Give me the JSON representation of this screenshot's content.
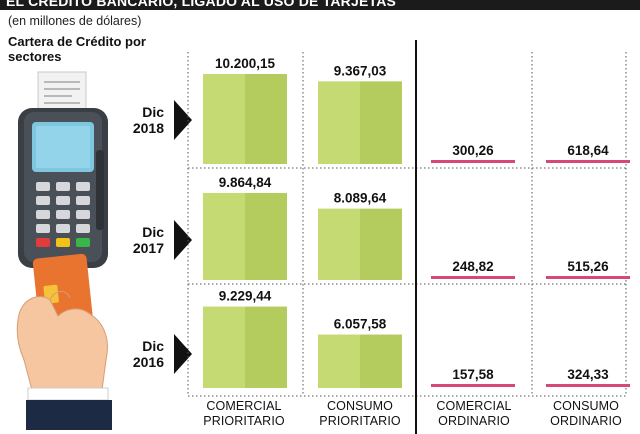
{
  "header": {
    "title": "EL CRÉDITO BANCARIO, LIGADO AL USO DE TARJETAS"
  },
  "subtitle": "(en millones de dólares)",
  "section_title": "Cartera de Crédito por sectores",
  "years": [
    {
      "line1": "Dic",
      "line2": "2018"
    },
    {
      "line1": "Dic",
      "line2": "2017"
    },
    {
      "line1": "Dic",
      "line2": "2016"
    }
  ],
  "categories": [
    {
      "line1": "COMERCIAL",
      "line2": "PRIORITARIO"
    },
    {
      "line1": "CONSUMO",
      "line2": "PRIORITARIO"
    },
    {
      "line1": "COMERCIAL",
      "line2": "ORDINARIO"
    },
    {
      "line1": "CONSUMO",
      "line2": "ORDINARIO"
    }
  ],
  "colors": {
    "priority_bar": "#c5da72",
    "priority_bar_shade": "#b4cc5e",
    "ordinary_bar": "#d6477a",
    "divider": "#111111",
    "dotted": "#555555"
  },
  "chart_data": {
    "type": "bar",
    "title": "Cartera de Crédito por sectores",
    "unit": "millones de dólares",
    "categories": [
      "COMERCIAL PRIORITARIO",
      "CONSUMO PRIORITARIO",
      "COMERCIAL ORDINARIO",
      "CONSUMO ORDINARIO"
    ],
    "series": [
      {
        "name": "Dic 2018",
        "values": [
          10200.15,
          9367.03,
          300.26,
          618.64
        ],
        "labels": [
          "10.200,15",
          "9.367,03",
          "300,26",
          "618,64"
        ]
      },
      {
        "name": "Dic 2017",
        "values": [
          9864.84,
          8089.64,
          248.82,
          515.26
        ],
        "labels": [
          "9.864,84",
          "8.089,64",
          "248,82",
          "515,26"
        ]
      },
      {
        "name": "Dic 2016",
        "values": [
          9229.44,
          6057.58,
          157.58,
          324.33
        ],
        "labels": [
          "9.229,44",
          "6.057,58",
          "157,58",
          "324,33"
        ]
      }
    ]
  }
}
